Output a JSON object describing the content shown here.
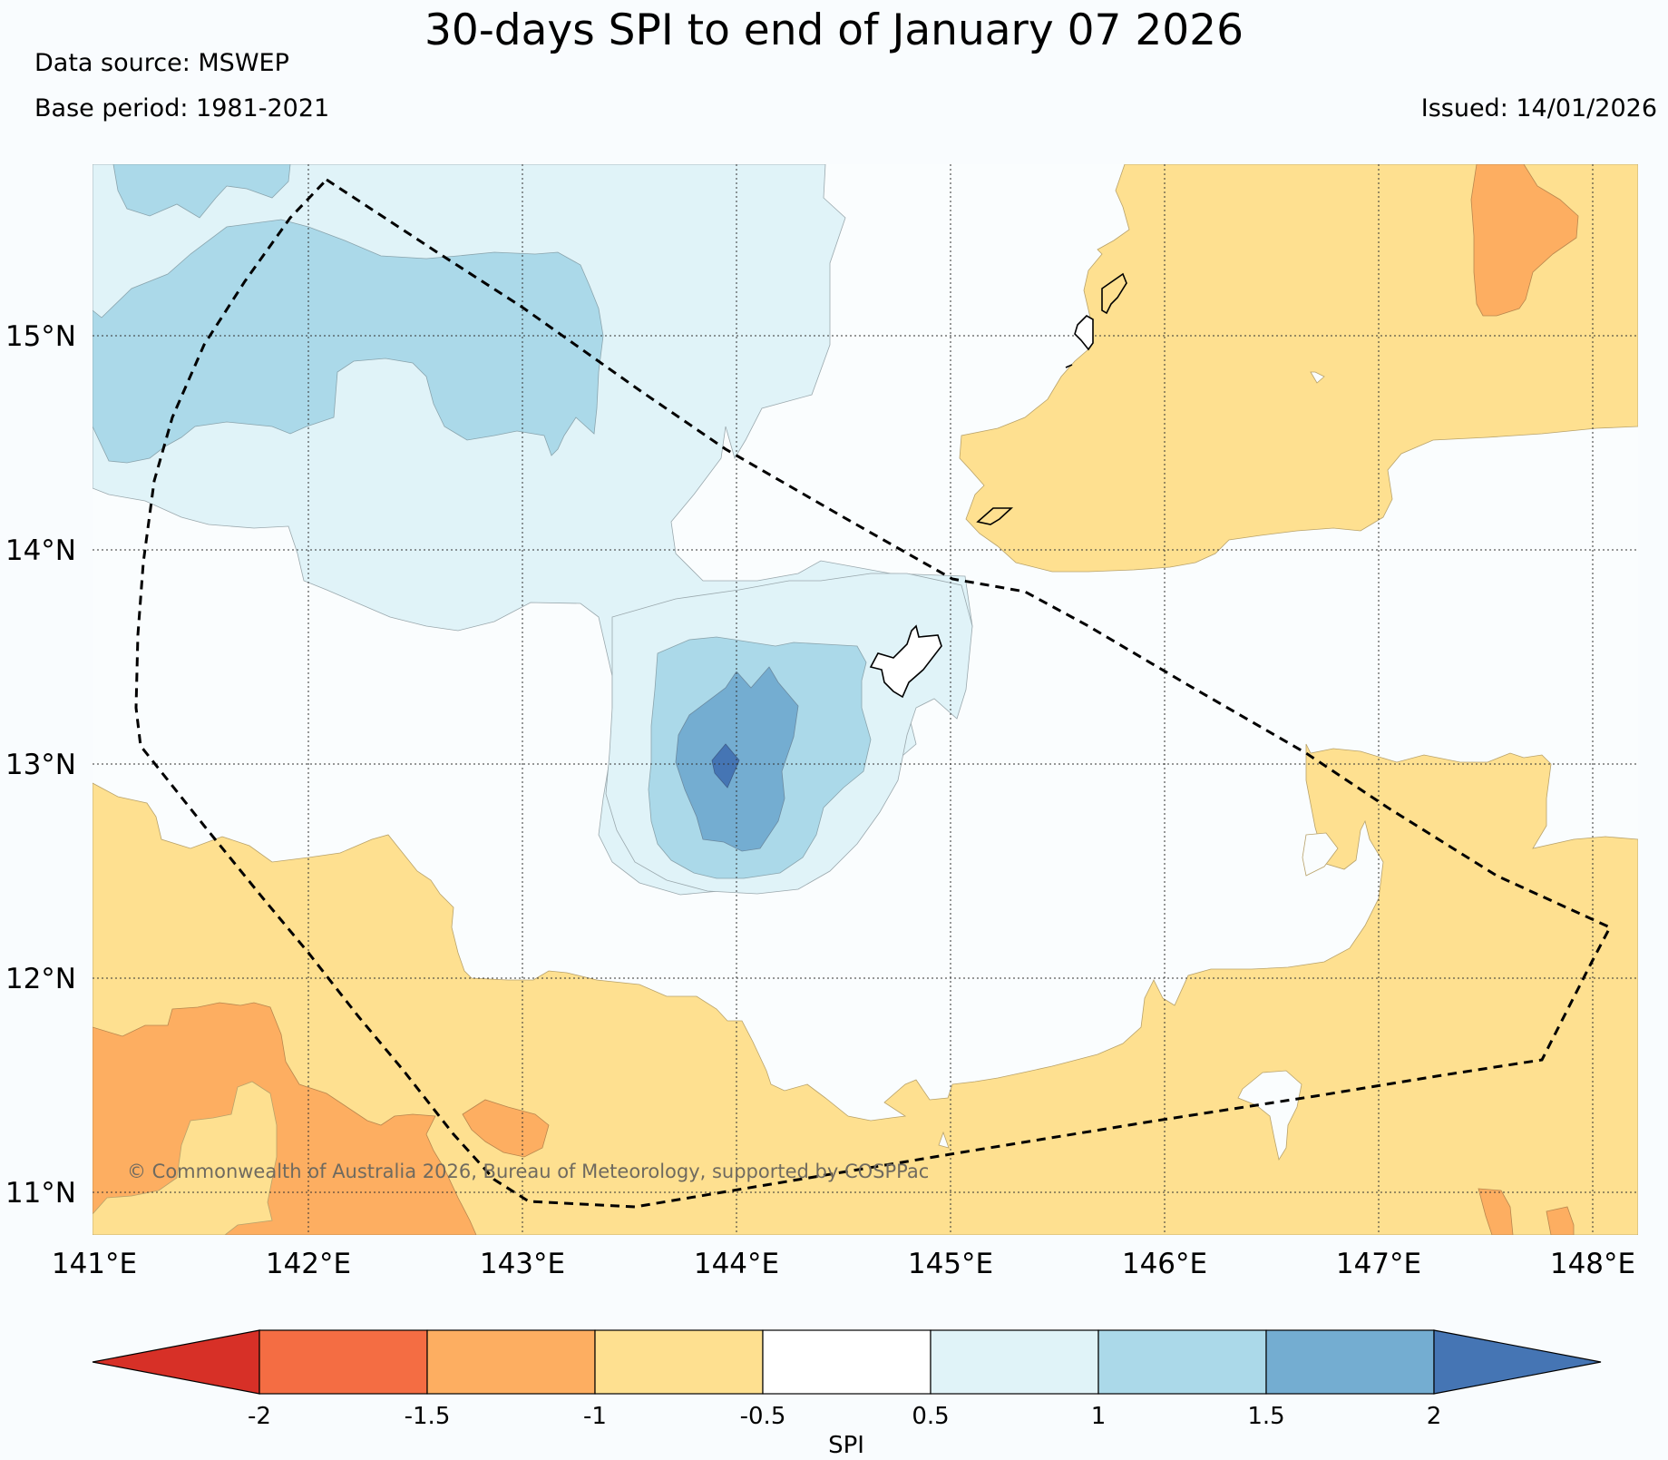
{
  "header": {
    "title": "30-days SPI to end of January 07 2026",
    "data_source": "Data source: MSWEP",
    "base_period": "Base period: 1981-2021",
    "issued": "Issued: 14/01/2026"
  },
  "map": {
    "lat_labels": [
      "15°N",
      "14°N",
      "13°N",
      "12°N",
      "11°N"
    ],
    "lon_labels": [
      "141°E",
      "142°E",
      "143°E",
      "144°E",
      "145°E",
      "146°E",
      "147°E",
      "148°E"
    ],
    "copyright": "© Commonwealth of Australia 2026, Bureau of Meteorology, supported by COSPPac"
  },
  "colorbar": {
    "label": "SPI",
    "ticks": [
      "-2",
      "-1.5",
      "-1",
      "-0.5",
      "0.5",
      "1",
      "1.5",
      "2"
    ],
    "colors": [
      "#d73027",
      "#f46d43",
      "#fdae61",
      "#fee090",
      "#ffffff",
      "#e0f3f8",
      "#abd9e9",
      "#74add1",
      "#4575b4"
    ]
  }
}
